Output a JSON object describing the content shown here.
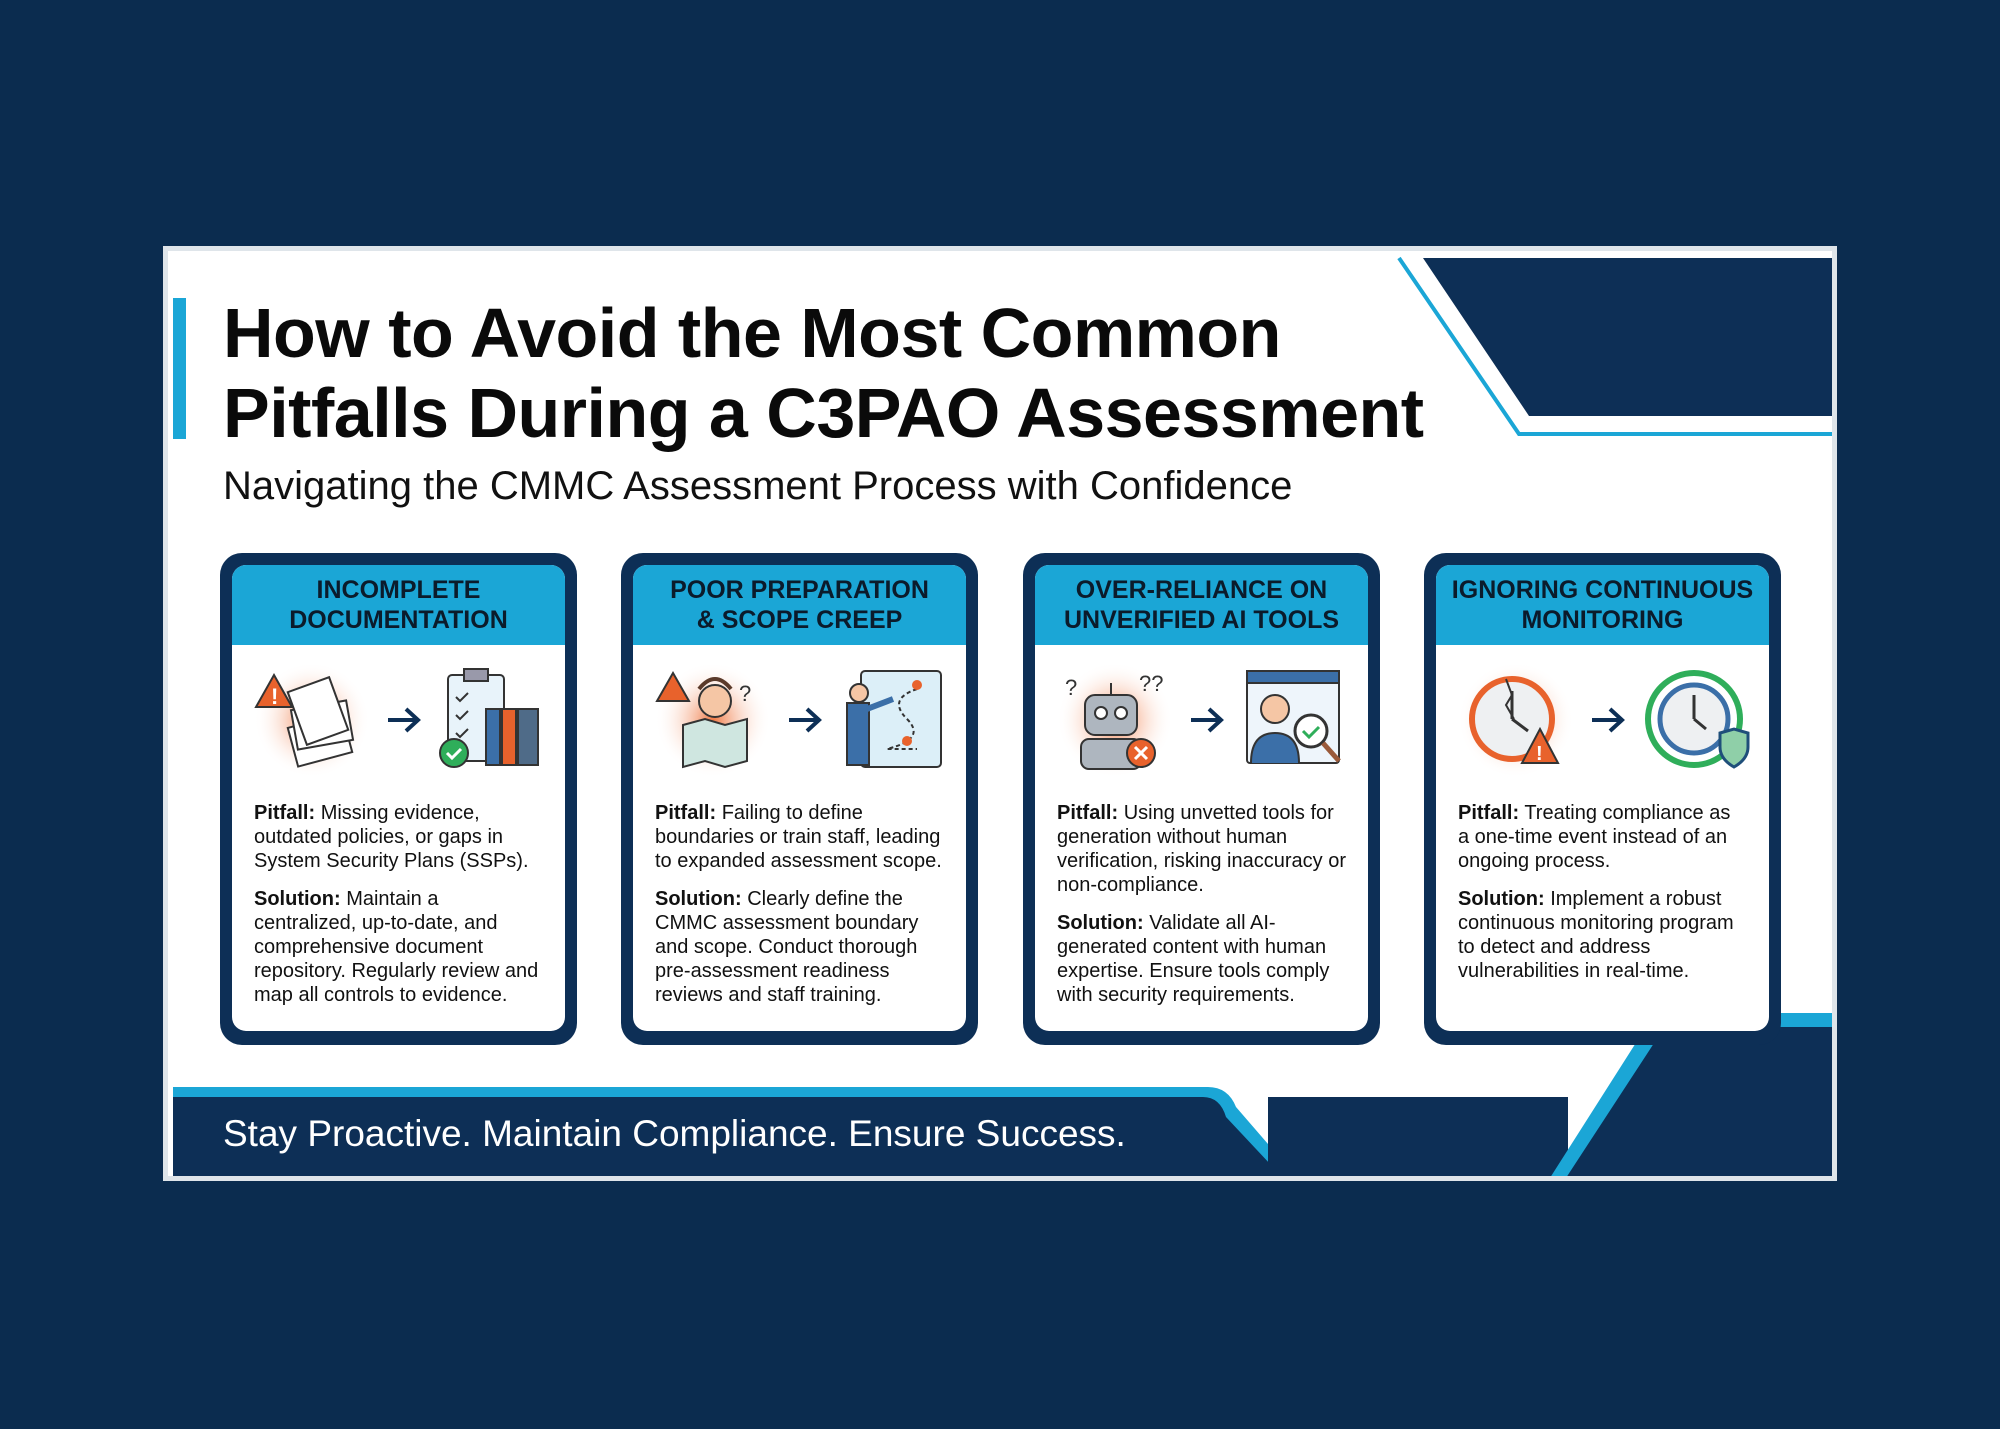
{
  "title_line1": "How to Avoid the Most Common",
  "title_line2": "Pitfalls During a C3PAO Assessment",
  "subtitle": "Navigating the CMMC Assessment Process with Confidence",
  "cards": [
    {
      "h1": "INCOMPLETE",
      "h2": "DOCUMENTATION",
      "pitfall_label": "Pitfall:",
      "pitfall": "Missing evidence, outdated policies, or gaps in System Security Plans (SSPs).",
      "solution_label": "Solution:",
      "solution": "Maintain a centralized, up-to-date, and comprehensive document repository. Regularly review and map all controls to evidence.",
      "icon_from": "warning-documents-icon",
      "icon_to": "checklist-binders-icon"
    },
    {
      "h1": "POOR PREPARATION",
      "h2": "& SCOPE CREEP",
      "pitfall_label": "Pitfall:",
      "pitfall": "Failing to define boundaries or train staff, leading to expanded assessment scope.",
      "solution_label": "Solution:",
      "solution": "Clearly define the CMMC assessment boundary and scope. Conduct thorough pre-assessment readiness reviews and staff training.",
      "icon_from": "confused-map-icon",
      "icon_to": "roadmap-presenter-icon"
    },
    {
      "h1": "OVER-RELIANCE ON",
      "h2": "UNVERIFIED AI TOOLS",
      "pitfall_label": "Pitfall:",
      "pitfall": "Using unvetted tools for generation without human verification, risking inaccuracy or non-compliance.",
      "solution_label": "Solution:",
      "solution": "Validate all AI-generated content with human expertise. Ensure tools comply with security requirements.",
      "icon_from": "robot-error-icon",
      "icon_to": "human-review-icon"
    },
    {
      "h1": "IGNORING CONTINUOUS",
      "h2": "MONITORING",
      "pitfall_label": "Pitfall:",
      "pitfall": "Treating compliance as a one-time event instead of an ongoing process.",
      "solution_label": "Solution:",
      "solution": "Implement a robust continuous monitoring program to detect and address vulnerabilities in real-time.",
      "icon_from": "broken-clock-icon",
      "icon_to": "clock-cycle-shield-icon"
    }
  ],
  "footer": "Stay Proactive. Maintain Compliance. Ensure Success.",
  "colors": {
    "navy": "#0d2f56",
    "cyan": "#1ba6d6",
    "orange": "#e8622c",
    "background": "#0b2c4f"
  }
}
